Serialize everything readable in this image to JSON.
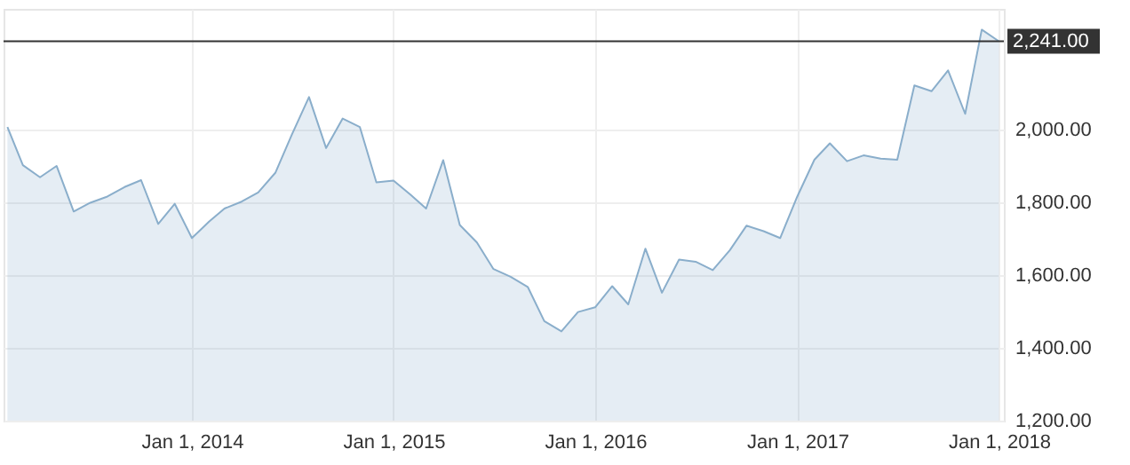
{
  "chart_data": {
    "type": "area",
    "x": [
      "2013-02-01",
      "2013-03-01",
      "2013-04-01",
      "2013-05-01",
      "2013-06-01",
      "2013-07-01",
      "2013-08-01",
      "2013-09-01",
      "2013-10-01",
      "2013-11-01",
      "2013-12-01",
      "2014-01-01",
      "2014-02-01",
      "2014-03-01",
      "2014-04-01",
      "2014-05-01",
      "2014-06-01",
      "2014-07-01",
      "2014-08-01",
      "2014-09-01",
      "2014-10-01",
      "2014-11-01",
      "2014-12-01",
      "2015-01-01",
      "2015-02-01",
      "2015-03-01",
      "2015-04-01",
      "2015-05-01",
      "2015-06-01",
      "2015-07-01",
      "2015-08-01",
      "2015-09-01",
      "2015-10-01",
      "2015-11-01",
      "2015-12-01",
      "2016-01-01",
      "2016-02-01",
      "2016-03-01",
      "2016-04-01",
      "2016-05-01",
      "2016-06-01",
      "2016-07-01",
      "2016-08-01",
      "2016-09-01",
      "2016-10-01",
      "2016-11-01",
      "2016-12-01",
      "2017-01-01",
      "2017-02-01",
      "2017-03-01",
      "2017-04-01",
      "2017-05-01",
      "2017-06-01",
      "2017-07-01",
      "2017-08-01",
      "2017-09-01",
      "2017-10-01",
      "2017-11-01",
      "2017-12-01",
      "2018-01-01"
    ],
    "series": [
      {
        "color": "#8aaecb",
        "values": [
          2006,
          1901,
          1868,
          1899,
          1774,
          1798,
          1815,
          1841,
          1860,
          1740,
          1795,
          1701,
          1746,
          1782,
          1801,
          1826,
          1880,
          1985,
          2088,
          1948,
          2029,
          2006,
          1854,
          1859,
          1820,
          1782,
          1915,
          1737,
          1689,
          1616,
          1595,
          1567,
          1473,
          1445,
          1498,
          1511,
          1569,
          1519,
          1672,
          1551,
          1642,
          1636,
          1613,
          1668,
          1735,
          1720,
          1701,
          1815,
          1916,
          1961,
          1912,
          1928,
          1919,
          1916,
          2120,
          2104,
          2161,
          2042,
          2273,
          2241
        ]
      }
    ],
    "xlim": [
      "2013-01-25",
      "2018-01-10"
    ],
    "xticks": [
      {
        "value": "2014-01-01",
        "label": "Jan 1, 2014"
      },
      {
        "value": "2015-01-01",
        "label": "Jan 1, 2015"
      },
      {
        "value": "2016-01-01",
        "label": "Jan 1, 2016"
      },
      {
        "value": "2017-01-01",
        "label": "Jan 1, 2017"
      },
      {
        "value": "2018-01-01",
        "label": "Jan 1, 2018"
      }
    ],
    "ylim": [
      1200,
      2330
    ],
    "yticks": [
      {
        "value": 1200,
        "label": "1,200.00"
      },
      {
        "value": 1400,
        "label": "1,400.00"
      },
      {
        "value": 1600,
        "label": "1,600.00"
      },
      {
        "value": 1800,
        "label": "1,800.00"
      },
      {
        "value": 2000,
        "label": "2,000.00"
      }
    ],
    "ref_lines": [
      {
        "axis": "y",
        "value": 2241,
        "label": "2,241.00",
        "color": "#333333"
      }
    ],
    "grid": true
  }
}
